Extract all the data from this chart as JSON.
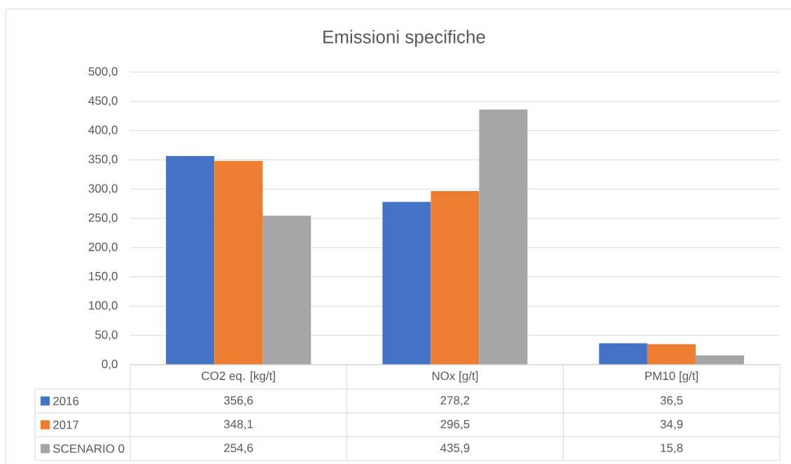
{
  "chart_data": {
    "type": "bar",
    "title": "Emissioni specifiche",
    "categories": [
      "CO2 eq. [kg/t]",
      "NOx [g/t]",
      "PM10 [g/t]"
    ],
    "series": [
      {
        "name": "2016",
        "color": "#4472c4",
        "values": [
          356.6,
          278.2,
          36.5
        ],
        "value_labels": [
          "356,6",
          "278,2",
          "36,5"
        ]
      },
      {
        "name": "2017",
        "color": "#ed7d31",
        "values": [
          348.1,
          296.5,
          34.9
        ],
        "value_labels": [
          "348,1",
          "296,5",
          "34,9"
        ]
      },
      {
        "name": "SCENARIO 0",
        "color": "#a5a5a5",
        "values": [
          254.6,
          435.9,
          15.8
        ],
        "value_labels": [
          "254,6",
          "435,9",
          "15,8"
        ]
      }
    ],
    "ylim": [
      0,
      500
    ],
    "yticks": [
      {
        "value": 0,
        "label": "0,0"
      },
      {
        "value": 50,
        "label": "50,0"
      },
      {
        "value": 100,
        "label": "100,0"
      },
      {
        "value": 150,
        "label": "150,0"
      },
      {
        "value": 200,
        "label": "200,0"
      },
      {
        "value": 250,
        "label": "250,0"
      },
      {
        "value": 300,
        "label": "300,0"
      },
      {
        "value": 350,
        "label": "350,0"
      },
      {
        "value": 400,
        "label": "400,0"
      },
      {
        "value": 450,
        "label": "450,0"
      },
      {
        "value": 500,
        "label": "500,0"
      }
    ],
    "grid": "y",
    "legend": "bottom left"
  }
}
